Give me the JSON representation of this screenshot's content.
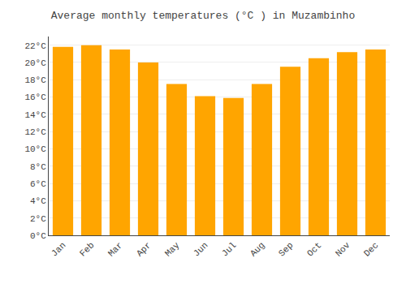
{
  "chart_data": {
    "type": "bar",
    "title": "Average monthly temperatures (°C ) in Muzambinho",
    "categories": [
      "Jan",
      "Feb",
      "Mar",
      "Apr",
      "May",
      "Jun",
      "Jul",
      "Aug",
      "Sep",
      "Oct",
      "Nov",
      "Dec"
    ],
    "values": [
      21.8,
      22.0,
      21.5,
      20.0,
      17.5,
      16.1,
      15.9,
      17.5,
      19.5,
      20.5,
      21.2,
      21.5
    ],
    "color": "#FFA500",
    "ylim": [
      0,
      23
    ],
    "yticks": [
      {
        "value": 0,
        "label": "0°C"
      },
      {
        "value": 2,
        "label": "2°C"
      },
      {
        "value": 4,
        "label": "4°C"
      },
      {
        "value": 6,
        "label": "6°C"
      },
      {
        "value": 8,
        "label": "8°C"
      },
      {
        "value": 10,
        "label": "10°C"
      },
      {
        "value": 12,
        "label": "12°C"
      },
      {
        "value": 14,
        "label": "14°C"
      },
      {
        "value": 16,
        "label": "16°C"
      },
      {
        "value": 18,
        "label": "18°C"
      },
      {
        "value": 20,
        "label": "20°C"
      },
      {
        "value": 22,
        "label": "22°C"
      }
    ],
    "grid": true
  }
}
